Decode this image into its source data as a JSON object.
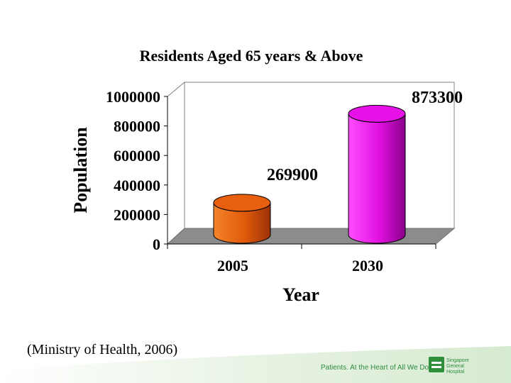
{
  "chart_data": {
    "type": "bar",
    "style": "3d-cylinder",
    "title": "Residents Aged 65 years & Above",
    "xlabel": "Year",
    "ylabel": "Population",
    "categories": [
      "2005",
      "2030"
    ],
    "values": [
      269900,
      873300
    ],
    "data_labels": [
      "269900",
      "873300"
    ],
    "bar_colors": [
      "#e8600f",
      "#e611e6"
    ],
    "yticks": [
      0,
      200000,
      400000,
      600000,
      800000,
      1000000
    ],
    "ylim": [
      0,
      1000000
    ],
    "grid": false,
    "legend": "none"
  },
  "citation": "(Ministry of Health, 2006)",
  "footer": {
    "tagline": "Patients. At the Heart of All We Do.",
    "logo_text": "Singapore General Hospital",
    "brand_color": "#2e8b3e"
  }
}
